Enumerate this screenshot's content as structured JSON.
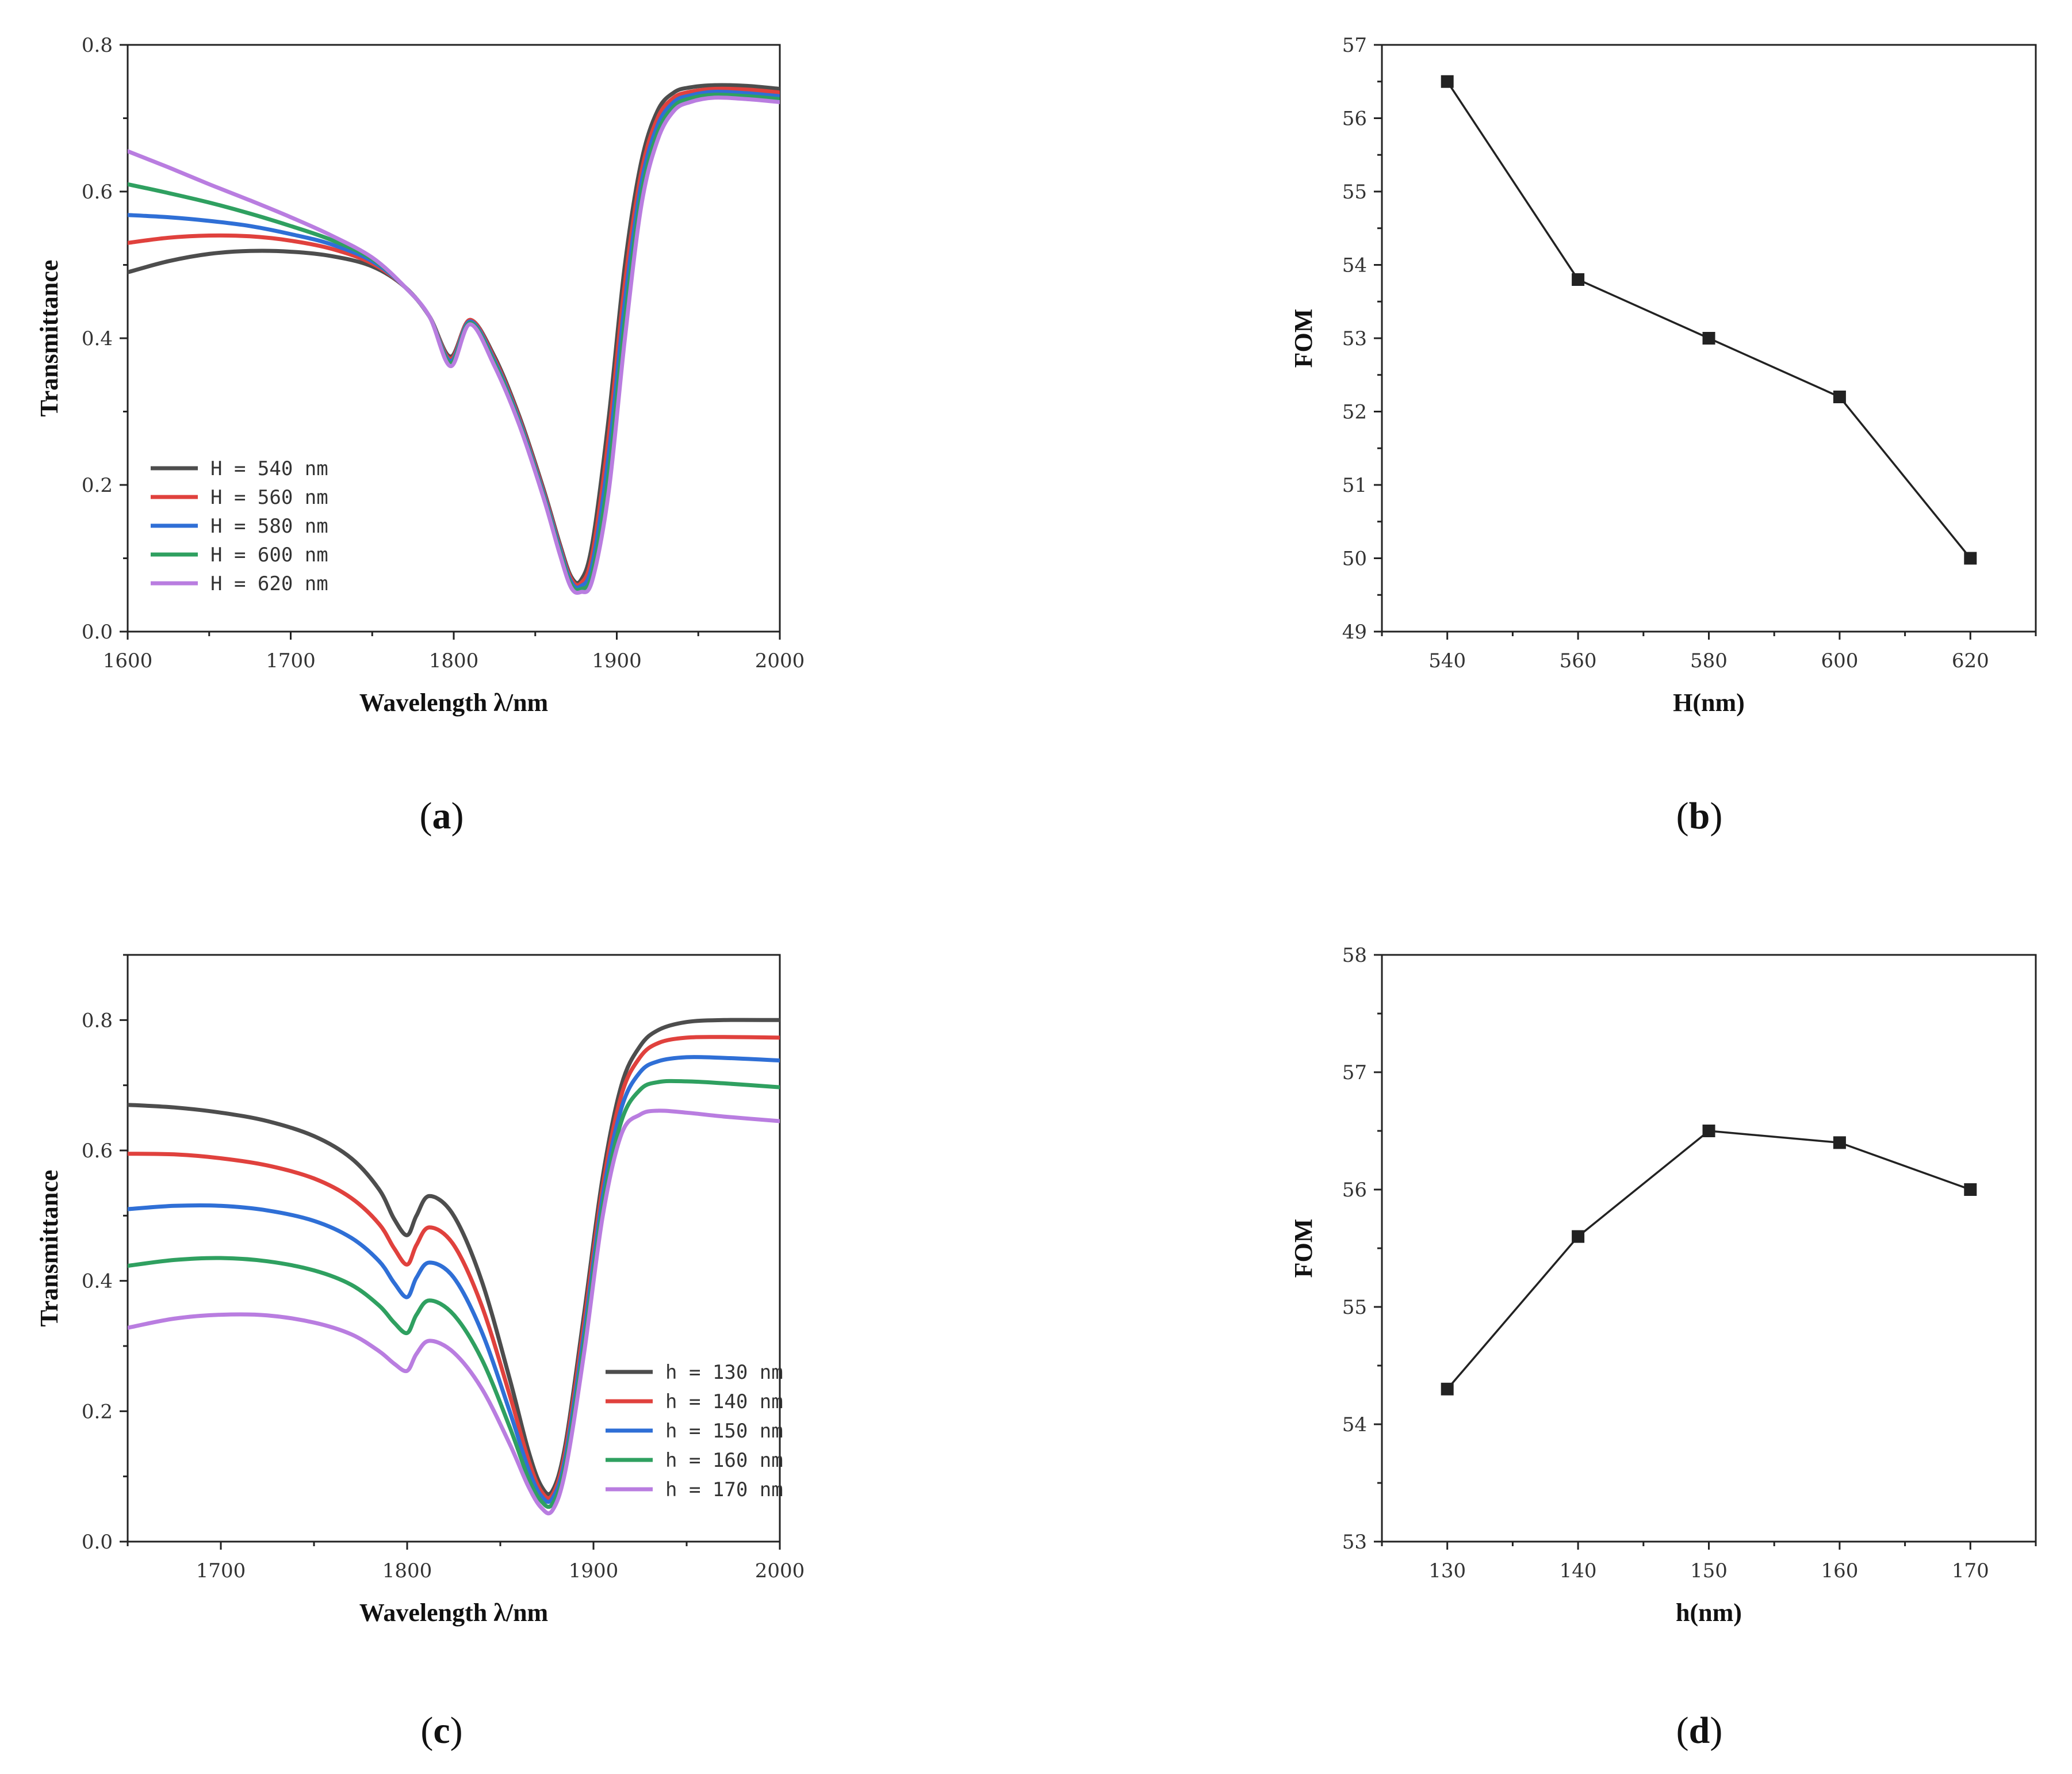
{
  "figure": {
    "panel_labels": [
      {
        "open": "(",
        "letter": "a",
        "close": ")"
      },
      {
        "open": "(",
        "letter": "b",
        "close": ")"
      },
      {
        "open": "(",
        "letter": "c",
        "close": ")"
      },
      {
        "open": "(",
        "letter": "d",
        "close": ")"
      }
    ]
  },
  "chart_data": [
    {
      "type": "line",
      "panel": "a",
      "title": "",
      "xlabel": "Wavelength λ/nm",
      "ylabel": "Transmittance",
      "xlim": [
        1600,
        2000
      ],
      "ylim": [
        0,
        0.8
      ],
      "xticks": [
        1600,
        1700,
        1800,
        1900,
        2000
      ],
      "xtick_labels": [
        "1600",
        "1700",
        "1800",
        "1900",
        "2000"
      ],
      "yticks": [
        0,
        0.2,
        0.4,
        0.6,
        0.8
      ],
      "ytick_labels": [
        "0.0",
        "0.2",
        "0.4",
        "0.6",
        "0.8"
      ],
      "grid": false,
      "legend_position": "bottom-left",
      "x": [
        1600,
        1625,
        1650,
        1675,
        1700,
        1725,
        1750,
        1770,
        1785,
        1798,
        1810,
        1825,
        1840,
        1855,
        1865,
        1872,
        1878,
        1885,
        1895,
        1905,
        1915,
        1925,
        1935,
        1945,
        1960,
        1980,
        2000
      ],
      "series": [
        {
          "name": "H = 540 nm",
          "color": "#4d4d4d",
          "values": [
            0.49,
            0.505,
            0.515,
            0.519,
            0.518,
            0.512,
            0.498,
            0.47,
            0.43,
            0.375,
            0.425,
            0.375,
            0.295,
            0.195,
            0.12,
            0.075,
            0.07,
            0.12,
            0.29,
            0.5,
            0.64,
            0.71,
            0.735,
            0.742,
            0.745,
            0.744,
            0.74
          ]
        },
        {
          "name": "H = 560 nm",
          "color": "#e0413d",
          "values": [
            0.53,
            0.537,
            0.54,
            0.539,
            0.533,
            0.522,
            0.502,
            0.47,
            0.43,
            0.372,
            0.425,
            0.372,
            0.292,
            0.192,
            0.117,
            0.072,
            0.066,
            0.105,
            0.265,
            0.475,
            0.625,
            0.7,
            0.728,
            0.736,
            0.74,
            0.739,
            0.735
          ]
        },
        {
          "name": "H = 580 nm",
          "color": "#2f6fd6",
          "values": [
            0.568,
            0.565,
            0.56,
            0.553,
            0.542,
            0.528,
            0.505,
            0.47,
            0.43,
            0.369,
            0.423,
            0.369,
            0.289,
            0.189,
            0.114,
            0.068,
            0.062,
            0.092,
            0.24,
            0.45,
            0.61,
            0.69,
            0.722,
            0.731,
            0.736,
            0.734,
            0.73
          ]
        },
        {
          "name": "H = 600 nm",
          "color": "#2fa060",
          "values": [
            0.61,
            0.598,
            0.585,
            0.57,
            0.553,
            0.534,
            0.508,
            0.47,
            0.43,
            0.366,
            0.421,
            0.366,
            0.286,
            0.186,
            0.11,
            0.064,
            0.058,
            0.08,
            0.215,
            0.425,
            0.595,
            0.68,
            0.716,
            0.727,
            0.732,
            0.73,
            0.726
          ]
        },
        {
          "name": "H = 620 nm",
          "color": "#b97de0",
          "values": [
            0.655,
            0.633,
            0.61,
            0.588,
            0.565,
            0.54,
            0.51,
            0.47,
            0.43,
            0.362,
            0.419,
            0.362,
            0.283,
            0.183,
            0.106,
            0.06,
            0.054,
            0.07,
            0.19,
            0.4,
            0.58,
            0.67,
            0.71,
            0.722,
            0.728,
            0.726,
            0.722
          ]
        }
      ]
    },
    {
      "type": "line",
      "panel": "b",
      "title": "",
      "xlabel": "H(nm)",
      "ylabel": "FOM",
      "xlim": [
        530,
        630
      ],
      "ylim": [
        49,
        57
      ],
      "xticks": [
        540,
        560,
        580,
        600,
        620
      ],
      "xtick_labels": [
        "540",
        "560",
        "580",
        "600",
        "620"
      ],
      "yticks": [
        49,
        50,
        51,
        52,
        53,
        54,
        55,
        56,
        57
      ],
      "ytick_labels": [
        "49",
        "50",
        "51",
        "52",
        "53",
        "54",
        "55",
        "56",
        "57"
      ],
      "grid": false,
      "marker": "square",
      "x": [
        540,
        560,
        580,
        600,
        620
      ],
      "series": [
        {
          "name": "FOM",
          "color": "#222222",
          "values": [
            56.5,
            53.8,
            53.0,
            52.2,
            50.0
          ]
        }
      ]
    },
    {
      "type": "line",
      "panel": "c",
      "title": "",
      "xlabel": "Wavelength λ/nm",
      "ylabel": "Transmittance",
      "xlim": [
        1650,
        2000
      ],
      "ylim": [
        0,
        0.9
      ],
      "xticks": [
        1700,
        1800,
        1900,
        2000
      ],
      "xtick_labels": [
        "1700",
        "1800",
        "1900",
        "2000"
      ],
      "yticks": [
        0,
        0.2,
        0.4,
        0.6,
        0.8
      ],
      "ytick_labels": [
        "0.0",
        "0.2",
        "0.4",
        "0.6",
        "0.8"
      ],
      "grid": false,
      "legend_position": "bottom-right",
      "x": [
        1650,
        1675,
        1700,
        1725,
        1750,
        1770,
        1785,
        1793,
        1800,
        1805,
        1812,
        1825,
        1840,
        1855,
        1865,
        1872,
        1878,
        1885,
        1895,
        1905,
        1915,
        1925,
        1935,
        1950,
        1970,
        2000
      ],
      "series": [
        {
          "name": "h = 130 nm",
          "color": "#4d4d4d",
          "values": [
            0.67,
            0.666,
            0.658,
            0.645,
            0.622,
            0.588,
            0.54,
            0.495,
            0.47,
            0.5,
            0.53,
            0.5,
            0.4,
            0.25,
            0.14,
            0.085,
            0.078,
            0.15,
            0.35,
            0.56,
            0.7,
            0.76,
            0.785,
            0.797,
            0.8,
            0.8
          ]
        },
        {
          "name": "h = 140 nm",
          "color": "#e0413d",
          "values": [
            0.595,
            0.594,
            0.588,
            0.577,
            0.557,
            0.527,
            0.487,
            0.45,
            0.425,
            0.455,
            0.482,
            0.455,
            0.362,
            0.225,
            0.126,
            0.077,
            0.072,
            0.14,
            0.335,
            0.545,
            0.685,
            0.743,
            0.765,
            0.773,
            0.774,
            0.773
          ]
        },
        {
          "name": "h = 150 nm",
          "color": "#2f6fd6",
          "values": [
            0.51,
            0.515,
            0.515,
            0.508,
            0.492,
            0.466,
            0.43,
            0.397,
            0.375,
            0.405,
            0.428,
            0.405,
            0.322,
            0.2,
            0.112,
            0.07,
            0.066,
            0.13,
            0.32,
            0.53,
            0.665,
            0.72,
            0.737,
            0.743,
            0.742,
            0.738
          ]
        },
        {
          "name": "h = 160 nm",
          "color": "#2fa060",
          "values": [
            0.423,
            0.432,
            0.435,
            0.43,
            0.416,
            0.394,
            0.362,
            0.336,
            0.32,
            0.348,
            0.37,
            0.348,
            0.28,
            0.176,
            0.098,
            0.062,
            0.058,
            0.12,
            0.305,
            0.515,
            0.645,
            0.693,
            0.705,
            0.706,
            0.703,
            0.697
          ]
        },
        {
          "name": "h = 170 nm",
          "color": "#b97de0",
          "values": [
            0.328,
            0.342,
            0.348,
            0.347,
            0.336,
            0.318,
            0.292,
            0.273,
            0.262,
            0.288,
            0.308,
            0.29,
            0.235,
            0.15,
            0.085,
            0.052,
            0.048,
            0.11,
            0.29,
            0.5,
            0.625,
            0.655,
            0.661,
            0.658,
            0.652,
            0.645
          ]
        }
      ]
    },
    {
      "type": "line",
      "panel": "d",
      "title": "",
      "xlabel": "h(nm)",
      "ylabel": "FOM",
      "xlim": [
        125,
        175
      ],
      "ylim": [
        53,
        58
      ],
      "xticks": [
        130,
        140,
        150,
        160,
        170
      ],
      "xtick_labels": [
        "130",
        "140",
        "150",
        "160",
        "170"
      ],
      "yticks": [
        53,
        54,
        55,
        56,
        57,
        58
      ],
      "ytick_labels": [
        "53",
        "54",
        "55",
        "56",
        "57",
        "58"
      ],
      "grid": false,
      "marker": "square",
      "x": [
        130,
        140,
        150,
        160,
        170
      ],
      "series": [
        {
          "name": "FOM",
          "color": "#222222",
          "values": [
            54.3,
            55.6,
            56.5,
            56.4,
            56.0
          ]
        }
      ]
    }
  ]
}
